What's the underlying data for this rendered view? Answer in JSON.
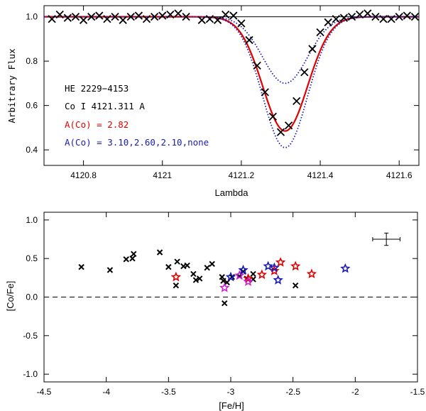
{
  "chart_data": [
    {
      "type": "line",
      "xlabel": "Lambda",
      "ylabel": "Arbitrary Flux",
      "xlim": [
        4120.7,
        4121.65
      ],
      "ylim": [
        0.33,
        1.05
      ],
      "xticks": [
        4120.8,
        4121,
        4121.2,
        4121.4,
        4121.6
      ],
      "xtick_labels": [
        "4120.8",
        "4121",
        "4121.2",
        "4121.4",
        "4121.6"
      ],
      "yticks": [
        0.4,
        0.6,
        0.8,
        1.0
      ],
      "ytick_labels": [
        "0.4",
        "0.6",
        "0.8",
        "1.0"
      ],
      "annotations": [
        {
          "text": "HE 2229−4153",
          "color": "#000000"
        },
        {
          "text": "Co I 4121.311 A",
          "color": "#000000"
        },
        {
          "text": "A(Co) = 2.82",
          "color": "#e00000"
        },
        {
          "text": "A(Co) = 3.10,2.60,2.10,none",
          "color": "#1a1ab4"
        }
      ],
      "line_center": 4121.311,
      "line_width_sigma": 0.057,
      "series": [
        {
          "style": "marker-x",
          "color": "#000000",
          "x": [
            4120.72,
            4120.74,
            4120.76,
            4120.78,
            4120.8,
            4120.82,
            4120.84,
            4120.86,
            4120.88,
            4120.9,
            4120.92,
            4120.94,
            4120.96,
            4120.98,
            4121.0,
            4121.02,
            4121.04,
            4121.06,
            4121.1,
            4121.12,
            4121.14,
            4121.16,
            4121.18,
            4121.2,
            4121.22,
            4121.24,
            4121.26,
            4121.28,
            4121.3,
            4121.32,
            4121.34,
            4121.36,
            4121.38,
            4121.4,
            4121.42,
            4121.44,
            4121.46,
            4121.48,
            4121.5,
            4121.52,
            4121.54,
            4121.56,
            4121.58,
            4121.6,
            4121.62,
            4121.64
          ],
          "y": [
            0.99,
            1.01,
            0.995,
            1.0,
            0.985,
            1.0,
            1.005,
            0.99,
            1.0,
            0.985,
            1.0,
            1.005,
            0.99,
            1.0,
            1.005,
            1.01,
            1.015,
            1.0,
            0.985,
            0.99,
            0.985,
            1.01,
            1.005,
            0.97,
            0.895,
            0.78,
            0.66,
            0.55,
            0.48,
            0.51,
            0.62,
            0.75,
            0.855,
            0.93,
            0.975,
            0.99,
            0.995,
            1.0,
            1.01,
            1.015,
            1.0,
            0.99,
            0.99,
            1.0,
            1.005,
            1.0
          ]
        },
        {
          "style": "solid",
          "color": "#e00000",
          "depth": 0.515
        },
        {
          "style": "dotted",
          "color": "#1a1ab4",
          "depth": 0.59
        },
        {
          "style": "dotted",
          "color": "#1a1ab4",
          "depth": 0.3
        },
        {
          "style": "dotted",
          "color": "#1a1ab4",
          "depth": 0.0
        }
      ]
    },
    {
      "type": "scatter",
      "xlabel": "[Fe/H]",
      "ylabel": "[Co/Fe]",
      "xlim": [
        -4.5,
        -1.5
      ],
      "ylim": [
        -1.1,
        1.1
      ],
      "xticks": [
        -4.5,
        -4,
        -3.5,
        -3,
        -2.5,
        -2,
        -1.5
      ],
      "xtick_labels": [
        "-4.5",
        "-4",
        "-3.5",
        "-3",
        "-2.5",
        "-2",
        "-1.5"
      ],
      "yticks": [
        -1.0,
        -0.5,
        0.0,
        0.5,
        1.0
      ],
      "ytick_labels": [
        "-1.0",
        "-0.5",
        "0.0",
        "0.5",
        "1.0"
      ],
      "reference_line_y": 0.0,
      "error_bar": {
        "x": -1.75,
        "y": 0.75,
        "xerr": 0.11,
        "yerr": 0.08
      },
      "series": [
        {
          "marker": "x",
          "color": "#000000",
          "x": [
            -4.2,
            -3.97,
            -3.84,
            -3.79,
            -3.78,
            -3.57,
            -3.5,
            -3.44,
            -3.43,
            -3.38,
            -3.35,
            -3.3,
            -3.28,
            -3.25,
            -3.19,
            -3.15,
            -3.07,
            -3.06,
            -3.05,
            -3.03,
            -2.99,
            -2.93,
            -2.9,
            -2.87,
            -2.82,
            -2.82,
            -2.48
          ],
          "y": [
            0.39,
            0.35,
            0.49,
            0.5,
            0.56,
            0.58,
            0.39,
            0.15,
            0.46,
            0.4,
            0.41,
            0.3,
            0.22,
            0.24,
            0.38,
            0.43,
            0.26,
            0.21,
            -0.08,
            0.19,
            0.26,
            0.27,
            0.33,
            0.24,
            0.23,
            0.3,
            0.15
          ]
        },
        {
          "marker": "star",
          "color": "#e00000",
          "x": [
            -3.44,
            -2.86,
            -2.75,
            -2.65,
            -2.6,
            -2.48,
            -2.35
          ],
          "y": [
            0.26,
            0.24,
            0.29,
            0.34,
            0.45,
            0.4,
            0.3
          ]
        },
        {
          "marker": "star",
          "color": "#d020d0",
          "x": [
            -3.05,
            -2.93,
            -2.86
          ],
          "y": [
            0.12,
            0.28,
            0.2
          ]
        },
        {
          "marker": "star",
          "color": "#1a1ab4",
          "x": [
            -3.0,
            -2.9,
            -2.7,
            -2.65,
            -2.62,
            -2.08
          ],
          "y": [
            0.26,
            0.35,
            0.4,
            0.38,
            0.22,
            0.37
          ]
        }
      ]
    }
  ]
}
